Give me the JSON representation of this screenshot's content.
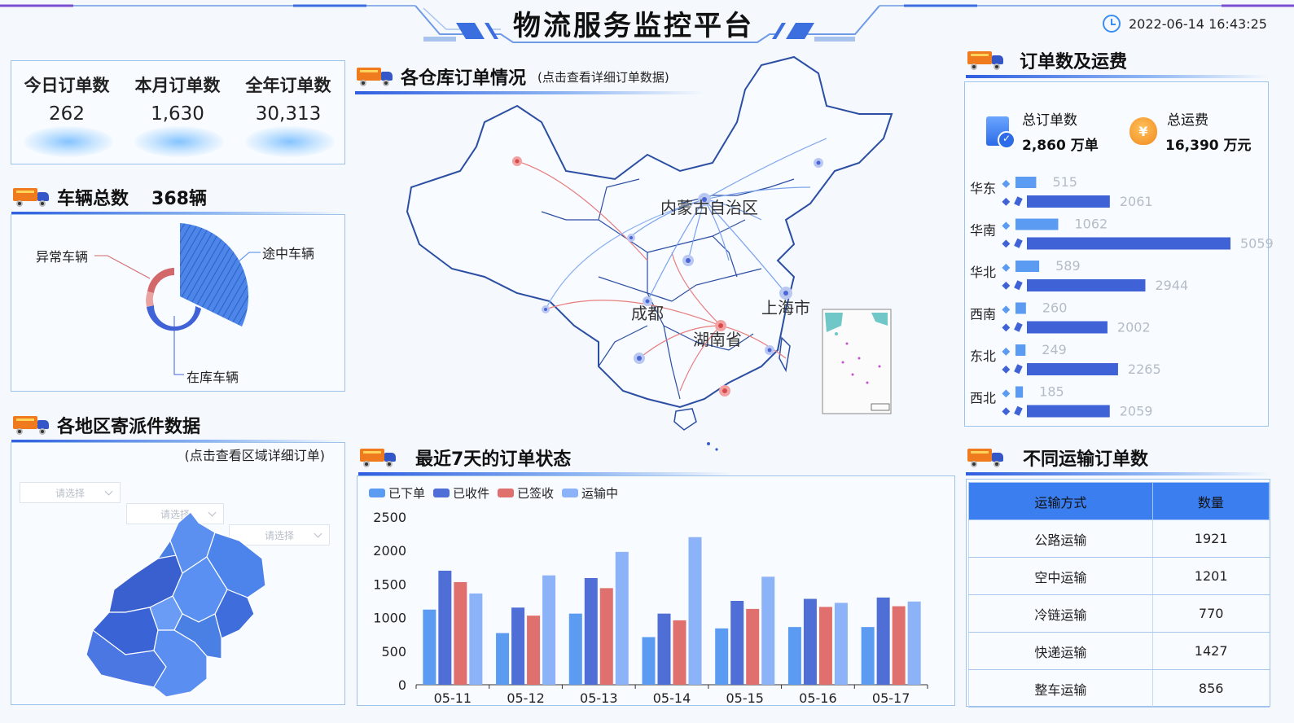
{
  "header": {
    "title": "物流服务监控平台",
    "datetime": "2022-06-14 16:43:25"
  },
  "orders_summary": {
    "items": [
      {
        "label": "今日订单数",
        "value": "262"
      },
      {
        "label": "本月订单数",
        "value": "1,630"
      },
      {
        "label": "全年订单数",
        "value": "30,313"
      }
    ]
  },
  "vehicles": {
    "title": "车辆总数",
    "total": "368辆",
    "labels": {
      "abnormal": "异常车辆",
      "in_transit": "途中车辆",
      "in_stock": "在库车辆"
    },
    "colors": {
      "in_transit": "#3d77e4",
      "in_stock": "#3f63d6",
      "abnormal": "#d2686a"
    }
  },
  "warehouse_map": {
    "title": "各仓库订单情况",
    "subtitle": "(点击查看详细订单数据)",
    "city_labels": [
      "内蒙古自治区",
      "成都",
      "湖南省",
      "上海市"
    ]
  },
  "region_parcels": {
    "title": "各地区寄派件数据",
    "subtitle": "(点击查看区域详细订单)",
    "selects": [
      "请选择",
      "请选择",
      "请选择"
    ]
  },
  "order_status": {
    "title": "最近7天的订单状态",
    "chart_data": {
      "type": "bar",
      "categories": [
        "05-11",
        "05-12",
        "05-13",
        "05-14",
        "05-15",
        "05-16",
        "05-17"
      ],
      "ylim": [
        0,
        2500
      ],
      "yticks": [
        "2500",
        "2000",
        "1500",
        "1000",
        "500",
        "0"
      ],
      "legend_position": "top-left",
      "series": [
        {
          "name": "已下单",
          "color": "#5b9cf2",
          "values": [
            1120,
            770,
            1060,
            710,
            840,
            860,
            860
          ]
        },
        {
          "name": "已收件",
          "color": "#4f6fd6",
          "values": [
            1700,
            1150,
            1590,
            1060,
            1250,
            1280,
            1300
          ]
        },
        {
          "name": "已签收",
          "color": "#e0706e",
          "values": [
            1530,
            1030,
            1440,
            960,
            1130,
            1160,
            1170
          ]
        },
        {
          "name": "运输中",
          "color": "#8cb2f7",
          "values": [
            1360,
            1630,
            1980,
            2200,
            1610,
            1220,
            1240
          ]
        }
      ]
    }
  },
  "fees": {
    "title": "订单数及运费",
    "total_orders_label": "总订单数",
    "total_orders_value": "2,860 万单",
    "total_fee_label": "总运费",
    "total_fee_value": "16,390 万元",
    "fee_icon_glyph": "¥",
    "chart_data": {
      "type": "bar",
      "orientation": "horizontal",
      "categories": [
        "华东",
        "华南",
        "华北",
        "西南",
        "东北",
        "西北"
      ],
      "series": [
        {
          "color": "#5b9cf2",
          "values": [
            515,
            1062,
            589,
            260,
            249,
            185
          ]
        },
        {
          "color": "#3f63d6",
          "values": [
            2061,
            5059,
            2944,
            2002,
            2265,
            2059
          ]
        }
      ],
      "value_labels_1": [
        "515",
        "1062",
        "589",
        "260",
        "249",
        "185"
      ],
      "value_labels_2": [
        "2061",
        "5059",
        "2944",
        "2002",
        "2265",
        "2059"
      ]
    }
  },
  "transport": {
    "title": "不同运输订单数",
    "headers": [
      "运输方式",
      "数量"
    ],
    "rows": [
      {
        "mode": "公路运输",
        "count": "1921"
      },
      {
        "mode": "空中运输",
        "count": "1201"
      },
      {
        "mode": "冷链运输",
        "count": "770"
      },
      {
        "mode": "快递运输",
        "count": "1427"
      },
      {
        "mode": "整车运输",
        "count": "856"
      }
    ]
  }
}
